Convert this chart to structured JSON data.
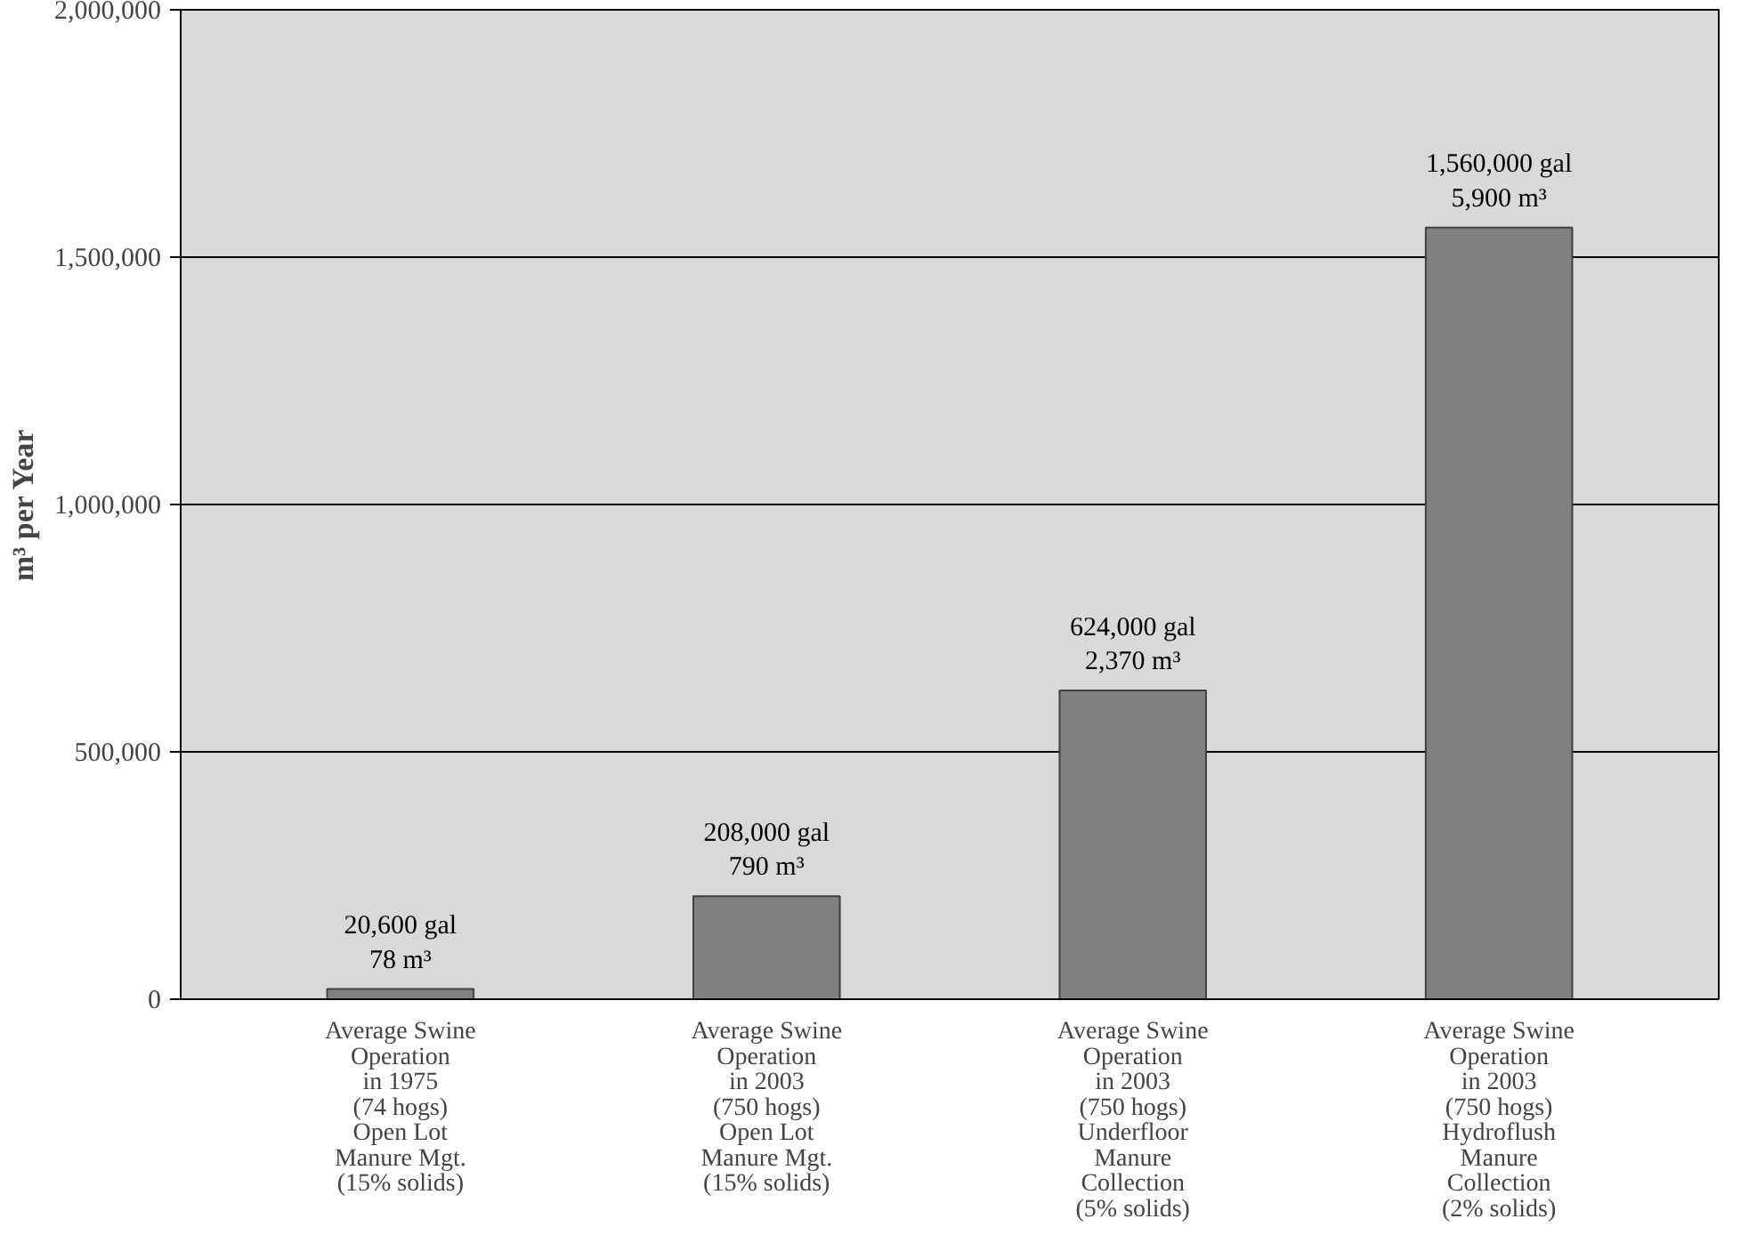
{
  "chart_data": {
    "type": "bar",
    "ylabel": "m³ per Year",
    "categories": [
      "Average Swine\nOperation\nin 1975\n(74 hogs)\nOpen Lot\nManure Mgt.\n(15% solids)",
      "Average Swine\nOperation\nin 2003\n(750 hogs)\nOpen Lot\nManure Mgt.\n(15% solids)",
      "Average Swine\nOperation\nin 2003\n(750 hogs)\nUnderfloor\nManure\nCollection\n(5% solids)",
      "Average Swine\nOperation\nin 2003\n(750 hogs)\nHydroflush\nManure\nCollection\n(2% solids)"
    ],
    "values": [
      20600,
      208000,
      624000,
      1560000
    ],
    "value_labels": [
      "20,600 gal\n78 m³",
      "208,000 gal\n790 m³",
      "624,000 gal\n2,370 m³",
      "1,560,000 gal\n5,900 m³"
    ],
    "color": "#808080",
    "ylim": [
      0,
      2000000
    ],
    "yticks": [
      {
        "value": 0,
        "label": "0"
      },
      {
        "value": 500000,
        "label": "500,000"
      },
      {
        "value": 1000000,
        "label": "1,000,000"
      },
      {
        "value": 1500000,
        "label": "1,500,000"
      },
      {
        "value": 2000000,
        "label": "2,000,000"
      }
    ],
    "grid": "y"
  }
}
